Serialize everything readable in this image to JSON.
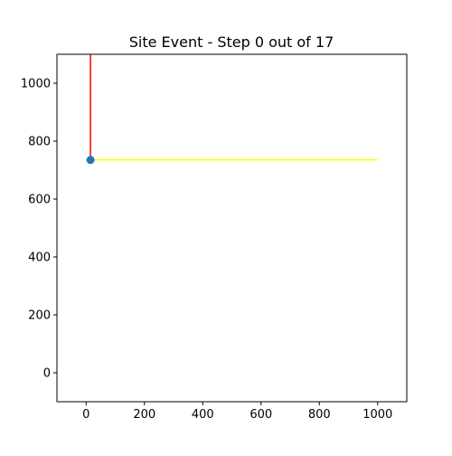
{
  "chart_data": {
    "type": "scatter",
    "title": "Site Event - Step 0 out of 17",
    "xlabel": "",
    "ylabel": "",
    "xlim": [
      -100,
      1100
    ],
    "ylim": [
      -100,
      1100
    ],
    "x_ticks": [
      0,
      200,
      400,
      600,
      800,
      1000
    ],
    "y_ticks": [
      0,
      200,
      400,
      600,
      800,
      1000
    ],
    "grid": false,
    "points": [
      {
        "x": 15,
        "y": 735,
        "color": "#1f77b4"
      }
    ],
    "segments": [
      {
        "x1": 15,
        "y1": 735,
        "x2": 15,
        "y2": 1100,
        "color": "#ff0000"
      },
      {
        "x1": 15,
        "y1": 735,
        "x2": 1000,
        "y2": 735,
        "color": "#ffff00"
      }
    ]
  }
}
